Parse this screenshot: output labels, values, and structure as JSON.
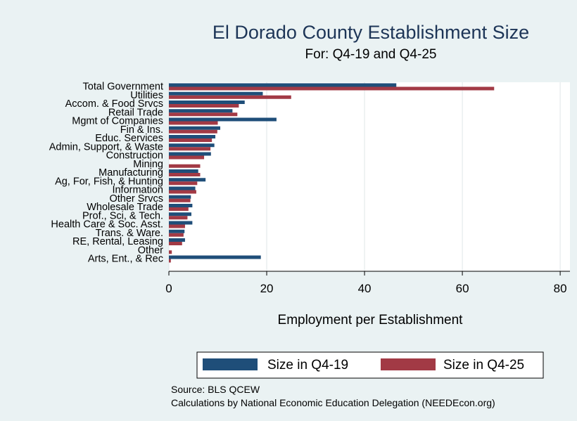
{
  "chart_data": {
    "type": "bar",
    "orientation": "horizontal",
    "title": "El Dorado County Establishment Size",
    "subtitle": "For: Q4-19 and Q4-25",
    "xlabel": "Employment per Establishment",
    "ylabel": "",
    "xlim": [
      0,
      82
    ],
    "xticks": [
      0,
      20,
      40,
      60,
      80
    ],
    "grid": true,
    "legend_position": "bottom",
    "categories": [
      "Total Government",
      "Utilities",
      "Accom. & Food Srvcs",
      "Retail Trade",
      "Mgmt of Companies",
      "Fin & Ins.",
      "Educ. Services",
      "Admin, Support, & Waste",
      "Construction",
      "Mining",
      "Manufacturing",
      "Ag, For, Fish, & Hunting",
      "Information",
      "Other Srvcs",
      "Wholesale Trade",
      "Prof., Sci, & Tech.",
      "Health Care & Soc. Asst.",
      "Trans. & Ware.",
      "RE, Rental, Leasing",
      "Other",
      "Arts, Ent., & Rec"
    ],
    "series": [
      {
        "name": "Size in Q4-19",
        "color": "#1f4e79",
        "values": [
          46.5,
          19.2,
          15.5,
          13.0,
          22.0,
          10.5,
          9.5,
          9.3,
          8.6,
          0,
          6.0,
          7.5,
          5.4,
          4.5,
          4.8,
          4.6,
          4.8,
          3.2,
          3.3,
          0,
          18.8
        ]
      },
      {
        "name": "Size in Q4-25",
        "color": "#a23a45",
        "values": [
          66.5,
          25.0,
          14.3,
          14.0,
          10.0,
          9.9,
          8.8,
          8.5,
          7.2,
          6.4,
          6.4,
          5.8,
          5.6,
          4.4,
          4.0,
          3.8,
          3.3,
          3.0,
          2.7,
          0.6,
          0.4
        ]
      }
    ]
  },
  "notes": {
    "source": "Source: BLS QCEW",
    "calc": "Calculations by National Economic Education Delegation (NEEDEcon.org)"
  }
}
